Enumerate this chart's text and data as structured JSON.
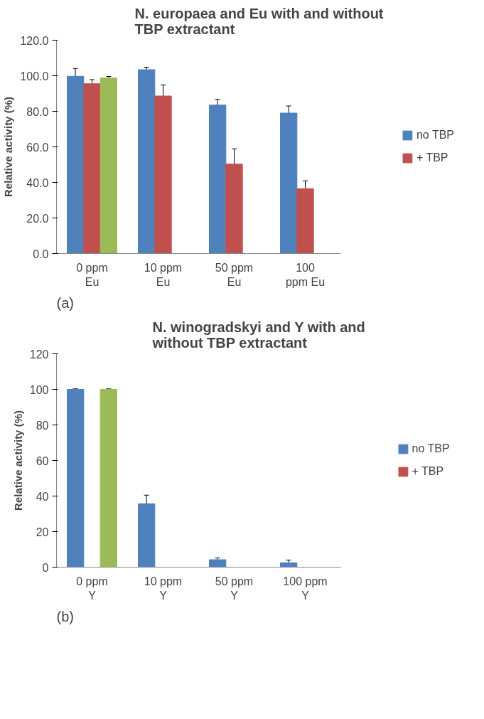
{
  "chart_data": [
    {
      "type": "bar",
      "title": "N. europaea and Eu with and without\nTBP extractant",
      "ylabel": "Relative activity (%)",
      "categories": [
        "0 ppm\nEu",
        "10 ppm\nEu",
        "50 ppm\nEu",
        "100\nppm Eu"
      ],
      "series": [
        {
          "name": "no TBP",
          "color": "#4f81bd",
          "values": [
            99.7,
            103.4,
            83.5,
            79.0
          ],
          "errors": [
            4.4,
            1.4,
            3.2,
            4.0
          ]
        },
        {
          "name": "+ TBP",
          "color": "#c0504d",
          "values": [
            95.5,
            88.6,
            50.3,
            36.5
          ],
          "errors": [
            2.3,
            6.2,
            8.6,
            4.4
          ]
        },
        {
          "color": "#9bbb59",
          "values": [
            98.8,
            null,
            null,
            null
          ],
          "errors": [
            0.8,
            null,
            null,
            null
          ]
        }
      ],
      "ylim": [
        0,
        120
      ],
      "yticks": [
        {
          "value": 0,
          "label": "0.0"
        },
        {
          "value": 20,
          "label": "20.0"
        },
        {
          "value": 40,
          "label": "40.0"
        },
        {
          "value": 60,
          "label": "60.0"
        },
        {
          "value": 80,
          "label": "80.0"
        },
        {
          "value": 100,
          "label": "100.0"
        },
        {
          "value": 120,
          "label": "120.0"
        }
      ],
      "grid": false,
      "legend": "right",
      "annotations": [
        "(a)"
      ]
    },
    {
      "type": "bar",
      "title": "N. winogradskyi and Y with and\nwithout TBP extractant",
      "ylabel": "Relative activity (%)",
      "categories": [
        "0 ppm\nY",
        "10 ppm\nY",
        "50 ppm\nY",
        "100 ppm\nY"
      ],
      "series": [
        {
          "name": "no TBP",
          "color": "#4f81bd",
          "values": [
            100,
            35.7,
            4.2,
            2.5
          ],
          "errors": [
            0.3,
            4.8,
            1.0,
            1.5
          ]
        },
        {
          "name": "+ TBP",
          "color": "#c0504d",
          "values": [
            null,
            null,
            null,
            null
          ]
        },
        {
          "color": "#9bbb59",
          "values": [
            100,
            null,
            null,
            null
          ],
          "errors": [
            0.3,
            null,
            null,
            null
          ]
        }
      ],
      "ylim": [
        0,
        120
      ],
      "yticks": [
        0,
        20,
        40,
        60,
        80,
        100,
        120
      ],
      "grid": false,
      "legend": "right",
      "annotations": [
        "(b)"
      ]
    }
  ]
}
